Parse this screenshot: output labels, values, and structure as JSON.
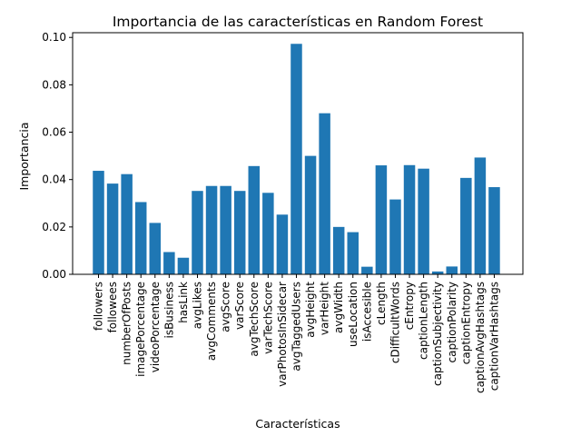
{
  "chart_data": {
    "type": "bar",
    "title": "Importancia de las características en Random Forest",
    "xlabel": "Características",
    "ylabel": "Importancia",
    "ylim": [
      0,
      0.102
    ],
    "yticks": [
      "0.00",
      "0.02",
      "0.04",
      "0.06",
      "0.08",
      "0.10"
    ],
    "grid": false,
    "bar_color": "#1f77b4",
    "categories": [
      "followers",
      "followees",
      "numberOfPosts",
      "imagePorcentage",
      "videoPorcentage",
      "isBusiness",
      "hasLink",
      "avgLikes",
      "avgComments",
      "avgScore",
      "varScore",
      "avgTechScore",
      "varTechScore",
      "varPhotosInSidecar",
      "avgTaggedUsers",
      "avgHeight",
      "varHeight",
      "avgWidth",
      "useLocation",
      "isAccesible",
      "cLength",
      "cDifficultWords",
      "cEntropy",
      "captionLength",
      "captionSubjectivity",
      "captionPolarity",
      "captionEntropy",
      "captionAvgHashtags",
      "captionVarHashtags"
    ],
    "values": [
      0.0437,
      0.0383,
      0.0423,
      0.0305,
      0.0217,
      0.0094,
      0.007,
      0.0352,
      0.0373,
      0.0373,
      0.0352,
      0.0457,
      0.0344,
      0.0252,
      0.0973,
      0.05,
      0.068,
      0.02,
      0.0178,
      0.0032,
      0.046,
      0.0316,
      0.0461,
      0.0446,
      0.0012,
      0.0033,
      0.0407,
      0.0493,
      0.0368
    ]
  }
}
